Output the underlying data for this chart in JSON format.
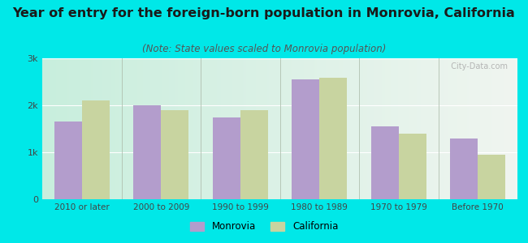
{
  "title": "Year of entry for the foreign-born population in Monrovia, California",
  "subtitle": "(Note: State values scaled to Monrovia population)",
  "categories": [
    "2010 or later",
    "2000 to 2009",
    "1990 to 1999",
    "1980 to 1989",
    "1970 to 1979",
    "Before 1970"
  ],
  "monrovia_values": [
    1650,
    2000,
    1750,
    2550,
    1550,
    1300
  ],
  "california_values": [
    2100,
    1900,
    1900,
    2580,
    1400,
    950
  ],
  "monrovia_color": "#b39dcc",
  "california_color": "#c8d4a0",
  "background_outer": "#00e8e8",
  "background_inner_left": "#c8eedd",
  "background_inner_right": "#f0f5f0",
  "title_fontsize": 11.5,
  "subtitle_fontsize": 8.5,
  "ylim": [
    0,
    3000
  ],
  "yticks": [
    0,
    1000,
    2000,
    3000
  ],
  "ytick_labels": [
    "0",
    "1k",
    "2k",
    "3k"
  ],
  "bar_width": 0.35,
  "legend_labels": [
    "Monrovia",
    "California"
  ]
}
